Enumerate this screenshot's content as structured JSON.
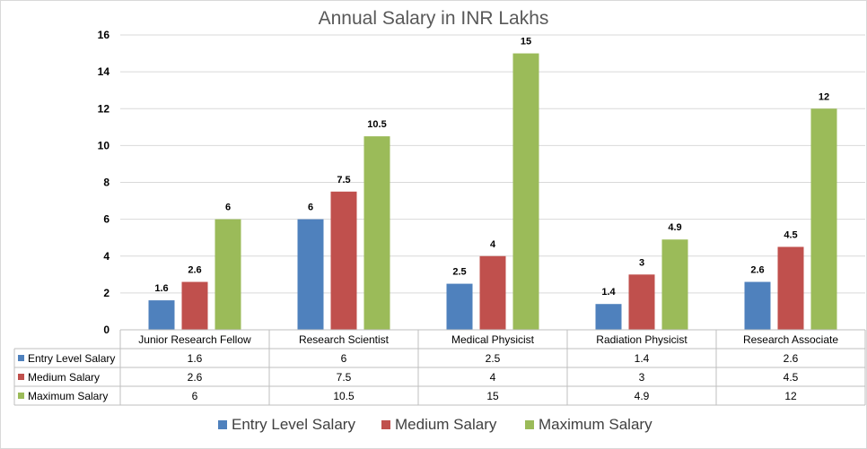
{
  "chart_data": {
    "type": "bar",
    "title": "Annual Salary in INR Lakhs",
    "categories": [
      "Junior Research Fellow",
      "Research Scientist",
      "Medical Physicist",
      "Radiation Physicist",
      "Research Associate"
    ],
    "series": [
      {
        "name": "Entry Level Salary",
        "color": "#4f81bd",
        "values": [
          1.6,
          6,
          2.5,
          1.4,
          2.6
        ],
        "labels": [
          "1.6",
          "6",
          "2.5",
          "1.4",
          "2.6"
        ]
      },
      {
        "name": "Medium Salary",
        "color": "#c0504d",
        "values": [
          2.6,
          7.5,
          4,
          3,
          4.5
        ],
        "labels": [
          "2.6",
          "7.5",
          "4",
          "3",
          "4.5"
        ]
      },
      {
        "name": "Maximum Salary",
        "color": "#9bbb59",
        "values": [
          6,
          10.5,
          15,
          4.9,
          12
        ],
        "labels": [
          "6",
          "10.5",
          "15",
          "4.9",
          "12"
        ]
      }
    ],
    "ylim": [
      0,
      16
    ],
    "yticks": [
      "0",
      "2",
      "4",
      "6",
      "8",
      "10",
      "12",
      "14",
      "16"
    ],
    "grid": true,
    "data_table": true,
    "legend": "bottom"
  }
}
